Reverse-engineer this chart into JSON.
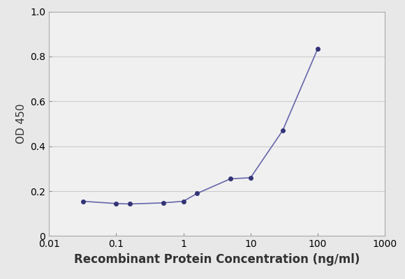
{
  "x_values": [
    0.032,
    0.1,
    0.16,
    0.5,
    1.0,
    1.6,
    5.0,
    10.0,
    30.0,
    100.0
  ],
  "y_values": [
    0.155,
    0.145,
    0.143,
    0.148,
    0.155,
    0.19,
    0.255,
    0.26,
    0.47,
    0.835
  ],
  "line_color": "#6666aa",
  "marker_color": "#333377",
  "marker_style": "o",
  "marker_size": 4,
  "line_width": 1.2,
  "xlabel": "Recombinant Protein Concentration (ng/ml)",
  "ylabel": "OD 450",
  "xlim": [
    0.01,
    1000
  ],
  "ylim": [
    0,
    1.0
  ],
  "yticks": [
    0,
    0.2,
    0.4,
    0.6,
    0.8,
    1.0
  ],
  "xtick_values": [
    0.01,
    0.1,
    1,
    10,
    100,
    1000
  ],
  "grid_color": "#cccccc",
  "background_color": "#e8e8e8",
  "plot_bg_color": "#f0f0f0",
  "xlabel_fontsize": 12,
  "ylabel_fontsize": 11,
  "tick_fontsize": 10,
  "figure_width": 5.8,
  "figure_height": 4.0
}
